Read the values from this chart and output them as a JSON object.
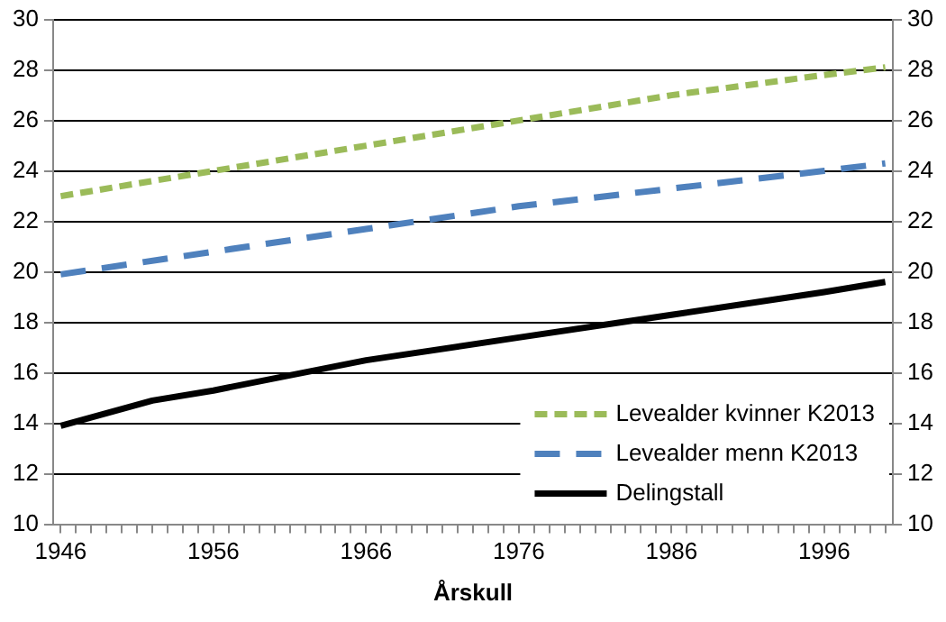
{
  "chart_data": {
    "type": "line",
    "xlabel": "Årskull",
    "xlim": [
      1945.5,
      2000.5
    ],
    "xticks": [
      1946,
      {
        "value": 1947,
        "label": null
      },
      {
        "value": 1948,
        "label": null
      },
      {
        "value": 1949,
        "label": null
      },
      {
        "value": 1950,
        "label": null
      },
      {
        "value": 1951,
        "label": null
      },
      {
        "value": 1952,
        "label": null
      },
      {
        "value": 1953,
        "label": null
      },
      {
        "value": 1954,
        "label": null
      },
      {
        "value": 1955,
        "label": null
      },
      1956,
      {
        "value": 1957,
        "label": null
      },
      {
        "value": 1958,
        "label": null
      },
      {
        "value": 1959,
        "label": null
      },
      {
        "value": 1960,
        "label": null
      },
      {
        "value": 1961,
        "label": null
      },
      {
        "value": 1962,
        "label": null
      },
      {
        "value": 1963,
        "label": null
      },
      {
        "value": 1964,
        "label": null
      },
      {
        "value": 1965,
        "label": null
      },
      1966,
      {
        "value": 1967,
        "label": null
      },
      {
        "value": 1968,
        "label": null
      },
      {
        "value": 1969,
        "label": null
      },
      {
        "value": 1970,
        "label": null
      },
      {
        "value": 1971,
        "label": null
      },
      {
        "value": 1972,
        "label": null
      },
      {
        "value": 1973,
        "label": null
      },
      {
        "value": 1974,
        "label": null
      },
      {
        "value": 1975,
        "label": null
      },
      1976,
      {
        "value": 1977,
        "label": null
      },
      {
        "value": 1978,
        "label": null
      },
      {
        "value": 1979,
        "label": null
      },
      {
        "value": 1980,
        "label": null
      },
      {
        "value": 1981,
        "label": null
      },
      {
        "value": 1982,
        "label": null
      },
      {
        "value": 1983,
        "label": null
      },
      {
        "value": 1984,
        "label": null
      },
      {
        "value": 1985,
        "label": null
      },
      1986,
      {
        "value": 1987,
        "label": null
      },
      {
        "value": 1988,
        "label": null
      },
      {
        "value": 1989,
        "label": null
      },
      {
        "value": 1990,
        "label": null
      },
      {
        "value": 1991,
        "label": null
      },
      {
        "value": 1992,
        "label": null
      },
      {
        "value": 1993,
        "label": null
      },
      {
        "value": 1994,
        "label": null
      },
      {
        "value": 1995,
        "label": null
      },
      1996,
      {
        "value": 1997,
        "label": null
      },
      {
        "value": 1998,
        "label": null
      },
      {
        "value": 1999,
        "label": null
      },
      {
        "value": 2000,
        "label": null
      }
    ],
    "ylim": [
      10,
      30
    ],
    "yticks": [
      10,
      12,
      14,
      16,
      18,
      20,
      22,
      24,
      26,
      28,
      30
    ],
    "y2lim": [
      10,
      30
    ],
    "y2ticks": [
      10,
      12,
      14,
      16,
      18,
      20,
      22,
      24,
      26,
      28,
      30
    ],
    "grid": "y",
    "legend": "bottom right",
    "marker": "none",
    "series": [
      {
        "name": "Levealder kvinner K2013",
        "color": "#9bbb59",
        "line_style": "dotted",
        "x": [
          1946,
          1956,
          1966,
          1976,
          1986,
          1996,
          2000
        ],
        "values": [
          23.0,
          24.0,
          25.0,
          26.0,
          27.0,
          27.8,
          28.1
        ]
      },
      {
        "name": "Levealder menn K2013",
        "color": "#4f81bd",
        "line_style": "dashed",
        "x": [
          1946,
          1956,
          1966,
          1976,
          1986,
          1996,
          2000
        ],
        "values": [
          19.9,
          20.8,
          21.7,
          22.6,
          23.3,
          24.0,
          24.3
        ]
      },
      {
        "name": "Delingstall",
        "color": "#000000",
        "line_style": "solid",
        "x": [
          1946,
          1949,
          1952,
          1956,
          1966,
          1976,
          1986,
          1996,
          2000
        ],
        "values": [
          13.9,
          14.4,
          14.9,
          15.3,
          16.5,
          17.4,
          18.3,
          19.2,
          19.6
        ]
      }
    ]
  }
}
